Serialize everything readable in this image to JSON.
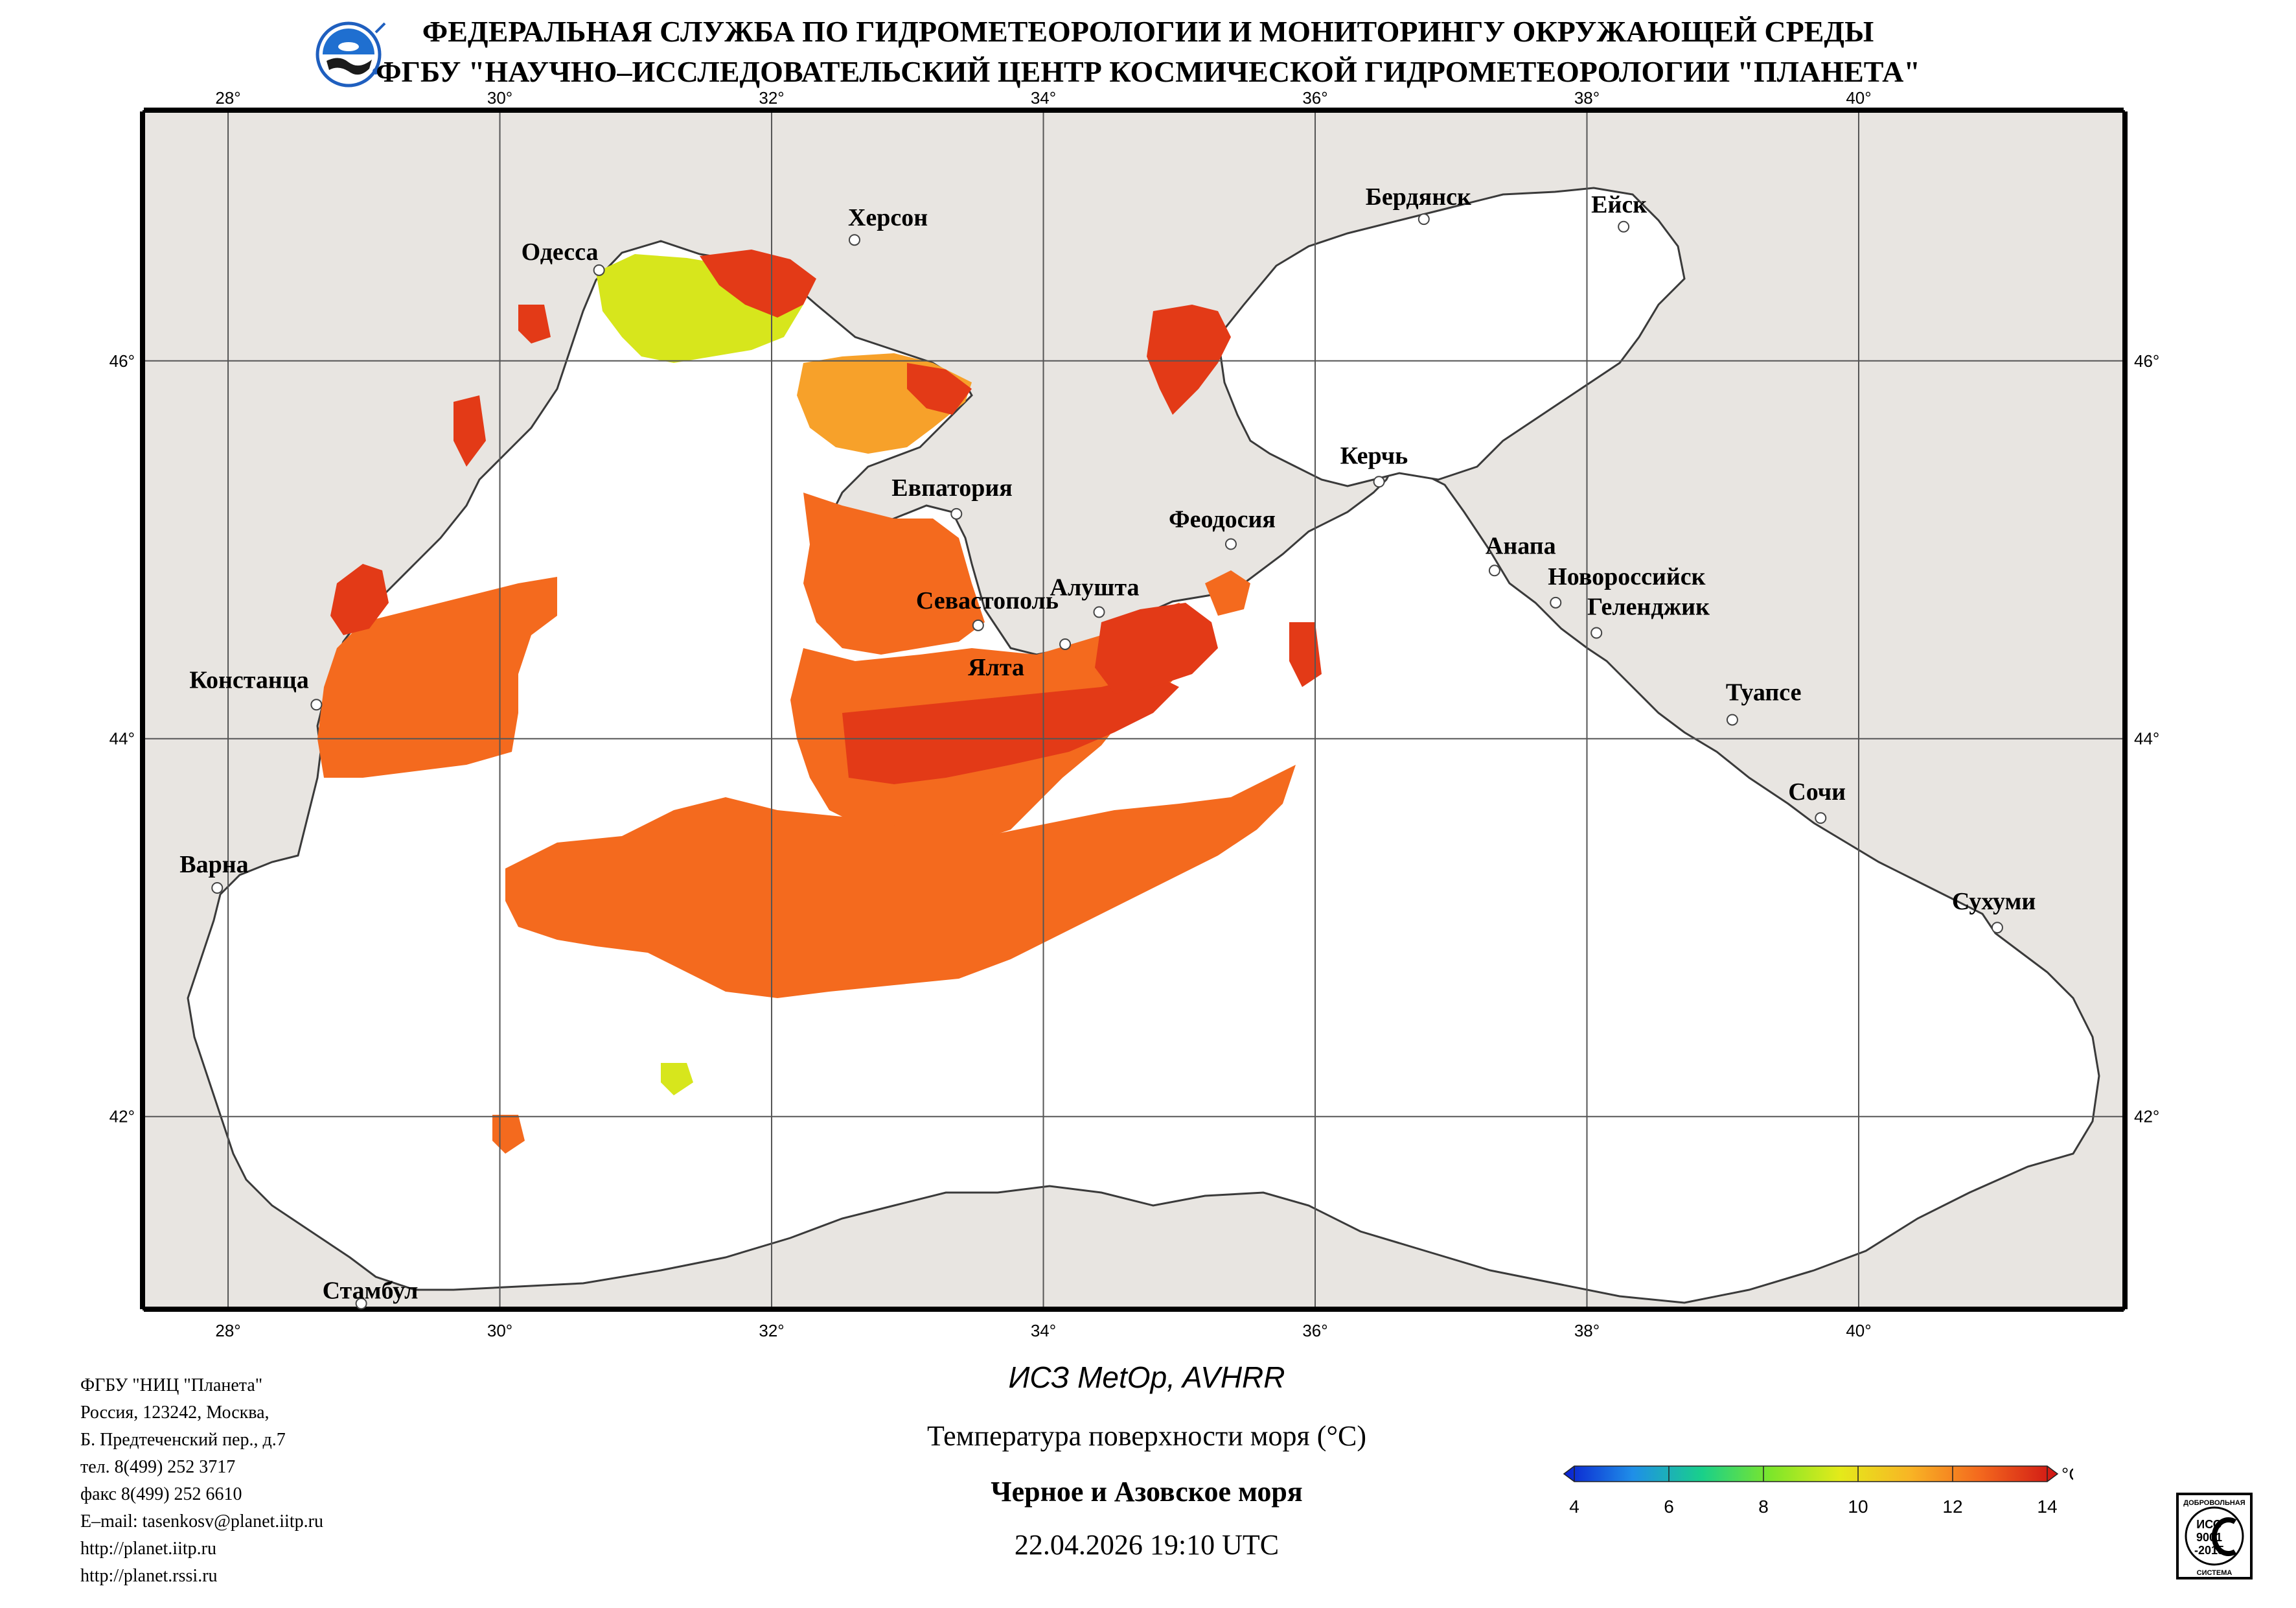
{
  "header": {
    "line1": "ФЕДЕРАЛЬНАЯ СЛУЖБА ПО ГИДРОМЕТЕОРОЛОГИИ И МОНИТОРИНГУ ОКРУЖАЮЩЕЙ СРЕДЫ",
    "line2": "ФГБУ \"НАУЧНО–ИССЛЕДОВАТЕЛЬСКИЙ ЦЕНТР КОСМИЧЕСКОЙ ГИДРОМЕТЕОРОЛОГИИ \"ПЛАНЕТА\"",
    "logo_icon": "planeta-globe-logo-icon"
  },
  "map": {
    "lon_labels": [
      "28°",
      "30°",
      "32°",
      "34°",
      "36°",
      "38°",
      "40°"
    ],
    "lat_labels": [
      "46°",
      "44°",
      "42°"
    ],
    "lon_ticks": [
      28,
      30,
      32,
      34,
      36,
      38,
      40
    ],
    "lat_ticks": [
      46,
      44,
      42
    ],
    "lon_range": [
      27.38,
      41.95
    ],
    "lat_range": [
      40.98,
      47.32
    ],
    "cities": [
      {
        "name": "Одесса",
        "lon": 30.73,
        "lat": 46.48
      },
      {
        "name": "Херсон",
        "lon": 32.61,
        "lat": 46.64
      },
      {
        "name": "Бердянск",
        "lon": 36.8,
        "lat": 46.75
      },
      {
        "name": "Ейск",
        "lon": 38.27,
        "lat": 46.71
      },
      {
        "name": "Евпатория",
        "lon": 33.36,
        "lat": 45.19
      },
      {
        "name": "Керчь",
        "lon": 36.47,
        "lat": 45.36
      },
      {
        "name": "Феодосия",
        "lon": 35.38,
        "lat": 45.03
      },
      {
        "name": "Анапа",
        "lon": 37.32,
        "lat": 44.89
      },
      {
        "name": "Новороссийск",
        "lon": 37.77,
        "lat": 44.72
      },
      {
        "name": "Геленджик",
        "lon": 38.07,
        "lat": 44.56
      },
      {
        "name": "Алушта",
        "lon": 34.41,
        "lat": 44.67
      },
      {
        "name": "Севастополь",
        "lon": 33.52,
        "lat": 44.6
      },
      {
        "name": "Ялта",
        "lon": 34.16,
        "lat": 44.5
      },
      {
        "name": "Констанца",
        "lon": 28.65,
        "lat": 44.18
      },
      {
        "name": "Туапсе",
        "lon": 39.07,
        "lat": 44.1
      },
      {
        "name": "Сочи",
        "lon": 39.72,
        "lat": 43.58
      },
      {
        "name": "Варна",
        "lon": 27.92,
        "lat": 43.21
      },
      {
        "name": "Сухуми",
        "lon": 41.02,
        "lat": 43.0
      },
      {
        "name": "Стамбул",
        "lon": 28.98,
        "lat": 41.01
      }
    ],
    "colors": {
      "land": "#e8e5e1",
      "sea_no_data": "#ffffff",
      "coastline": "#3a3a3a",
      "sst_warm": "#f46a1e",
      "sst_hot": "#e33a17",
      "sst_mid": "#f7a12a",
      "sst_cool": "#d7e61c"
    }
  },
  "contacts": [
    "ФГБУ \"НИЦ \"Планета\"",
    "Россия, 123242, Москва,",
    "Б. Предтеченский пер., д.7",
    "тел. 8(499) 252 3717",
    "факс 8(499) 252 6610",
    "E–mail: tasenkosv@planet.iitp.ru",
    "http://planet.iitp.ru",
    "http://planet.rssi.ru"
  ],
  "caption": {
    "sensor": "ИСЗ MetOp, AVHRR",
    "parameter": "Температура поверхности моря (°C)",
    "region": "Черное и Азовское моря",
    "datetime": "22.04.2026 19:10 UTC"
  },
  "colorbar": {
    "unit": "°C",
    "min": 4,
    "max": 14,
    "tick_labels": [
      "4",
      "6",
      "8",
      "10",
      "12",
      "14"
    ],
    "colors": [
      "#0a1fd0",
      "#1f8fe8",
      "#19d08a",
      "#7ee62a",
      "#e4ea1a",
      "#f8b525",
      "#f46a1e",
      "#cf1414"
    ]
  },
  "iso_badge": {
    "top_text": "ДОБРОВОЛЬНАЯ",
    "line1": "ИСО",
    "line2": "9001",
    "line3": "-2015",
    "bottom_text": "СИСТЕМА"
  }
}
